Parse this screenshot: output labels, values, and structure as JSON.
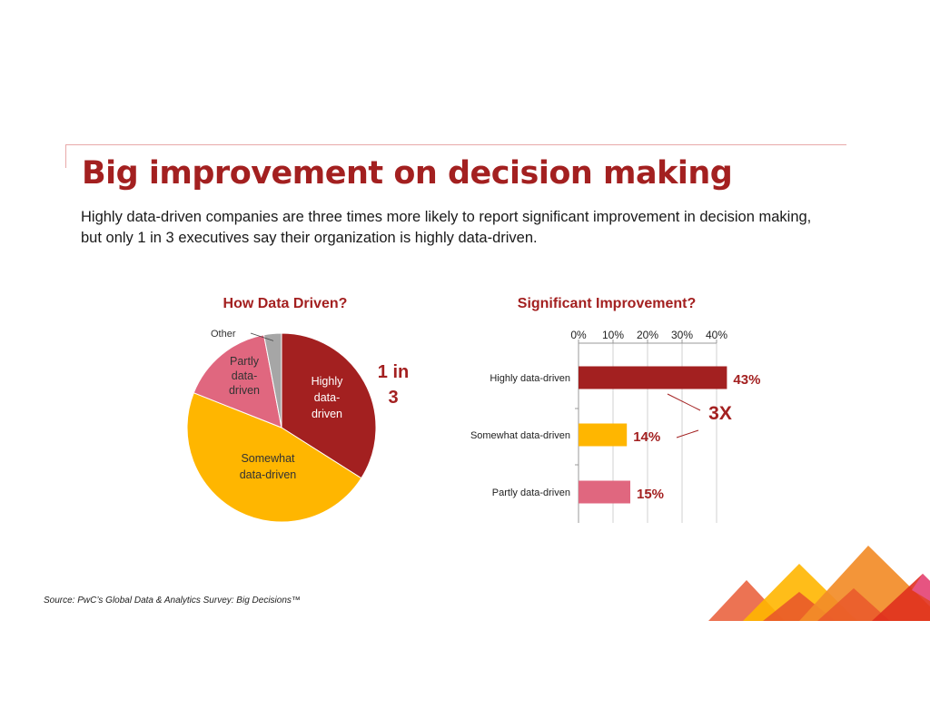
{
  "slide": {
    "title": "Big improvement on decision making",
    "subtitle": "Highly data-driven companies are three times more likely to report significant improvement in decision making, but only 1 in 3 executives say their organization is highly data-driven.",
    "source": "Source: PwC’s Global Data & Analytics Survey: Big Decisions™"
  },
  "colors": {
    "title": "#a32020",
    "highly": "#a32020",
    "somewhat": "#ffb600",
    "partly": "#e0677f",
    "other": "#a6a6a6",
    "accent_red": "#a32020"
  },
  "chart_data": [
    {
      "type": "pie",
      "title": "How Data Driven?",
      "slices": [
        {
          "label": "Highly data-driven",
          "lines": [
            "Highly",
            "data-",
            "driven"
          ],
          "value": 34,
          "color": "#a32020"
        },
        {
          "label": "Somewhat data-driven",
          "lines": [
            "Somewhat",
            "data-driven"
          ],
          "value": 47,
          "color": "#ffb600"
        },
        {
          "label": "Partly data-driven",
          "lines": [
            "Partly",
            "data-",
            "driven"
          ],
          "value": 16,
          "color": "#e0677f"
        },
        {
          "label": "Other",
          "lines": [
            "Other"
          ],
          "value": 3,
          "color": "#a6a6a6"
        }
      ],
      "callout_lines": [
        "1 in",
        "3"
      ]
    },
    {
      "type": "bar",
      "orientation": "horizontal",
      "title": "Significant Improvement?",
      "categories": [
        "Highly data-driven",
        "Somewhat data-driven",
        "Partly data-driven"
      ],
      "values": [
        43,
        14,
        15
      ],
      "value_labels": [
        "43%",
        "14%",
        "15%"
      ],
      "colors": [
        "#a32020",
        "#ffb600",
        "#e0677f"
      ],
      "xlim": [
        0,
        40
      ],
      "x_ticks": [
        0,
        10,
        20,
        30,
        40
      ],
      "x_tick_labels": [
        "0%",
        "10%",
        "20%",
        "30%",
        "40%"
      ],
      "axis_position": "top",
      "gridlines": true,
      "callout": "3X"
    }
  ]
}
